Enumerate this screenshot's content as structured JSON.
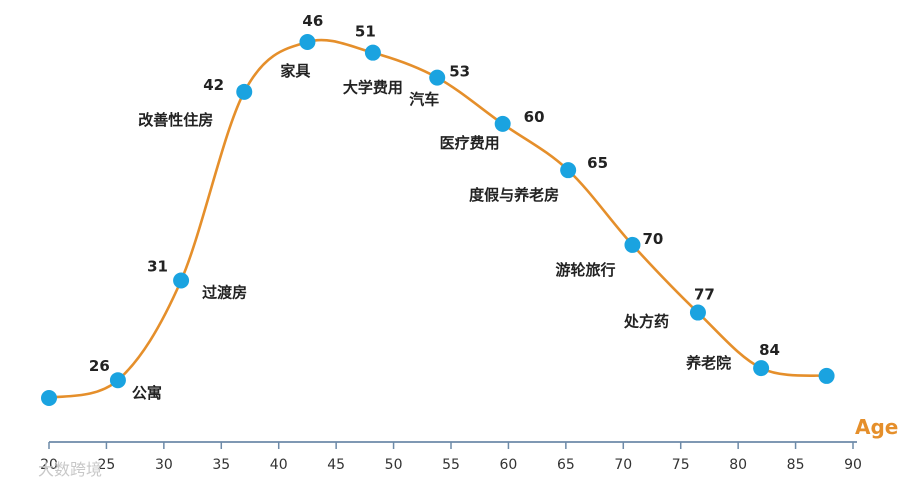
{
  "chart_data": {
    "type": "line",
    "xlabel": "Age",
    "xlim": [
      20,
      90
    ],
    "xticks": [
      "20",
      "25",
      "30",
      "35",
      "40",
      "45",
      "50",
      "55",
      "60",
      "65",
      "70",
      "75",
      "80",
      "85",
      "90"
    ],
    "series": [
      {
        "points": [
          {
            "x": 20,
            "y": 0.0,
            "age": "",
            "label": ""
          },
          {
            "x": 26,
            "y": 0.05,
            "age": "26",
            "label": "公寓"
          },
          {
            "x": 31.5,
            "y": 0.33,
            "age": "31",
            "label": "过渡房"
          },
          {
            "x": 37,
            "y": 0.86,
            "age": "42",
            "label": "改善性住房"
          },
          {
            "x": 42.5,
            "y": 1.0,
            "age": "46",
            "label": "家具"
          },
          {
            "x": 48.2,
            "y": 0.97,
            "age": "51",
            "label": "大学费用"
          },
          {
            "x": 53.8,
            "y": 0.9,
            "age": "53",
            "label": "汽车"
          },
          {
            "x": 59.5,
            "y": 0.77,
            "age": "60",
            "label": "医疗费用"
          },
          {
            "x": 65.2,
            "y": 0.64,
            "age": "65",
            "label": "度假与养老房"
          },
          {
            "x": 70.8,
            "y": 0.43,
            "age": "70",
            "label": "游轮旅行"
          },
          {
            "x": 76.5,
            "y": 0.24,
            "age": "77",
            "label": "处方药"
          },
          {
            "x": 82.0,
            "y": 0.084,
            "age": "84",
            "label": "养老院"
          },
          {
            "x": 87.7,
            "y": 0.062,
            "age": "",
            "label": ""
          }
        ]
      }
    ],
    "colors": {
      "line": "#e58f2b",
      "marker": "#1aa3e0",
      "axis": "#6d8aa8",
      "axis_title": "#e58f2b"
    }
  },
  "watermark": {
    "text": "大数跨境"
  }
}
